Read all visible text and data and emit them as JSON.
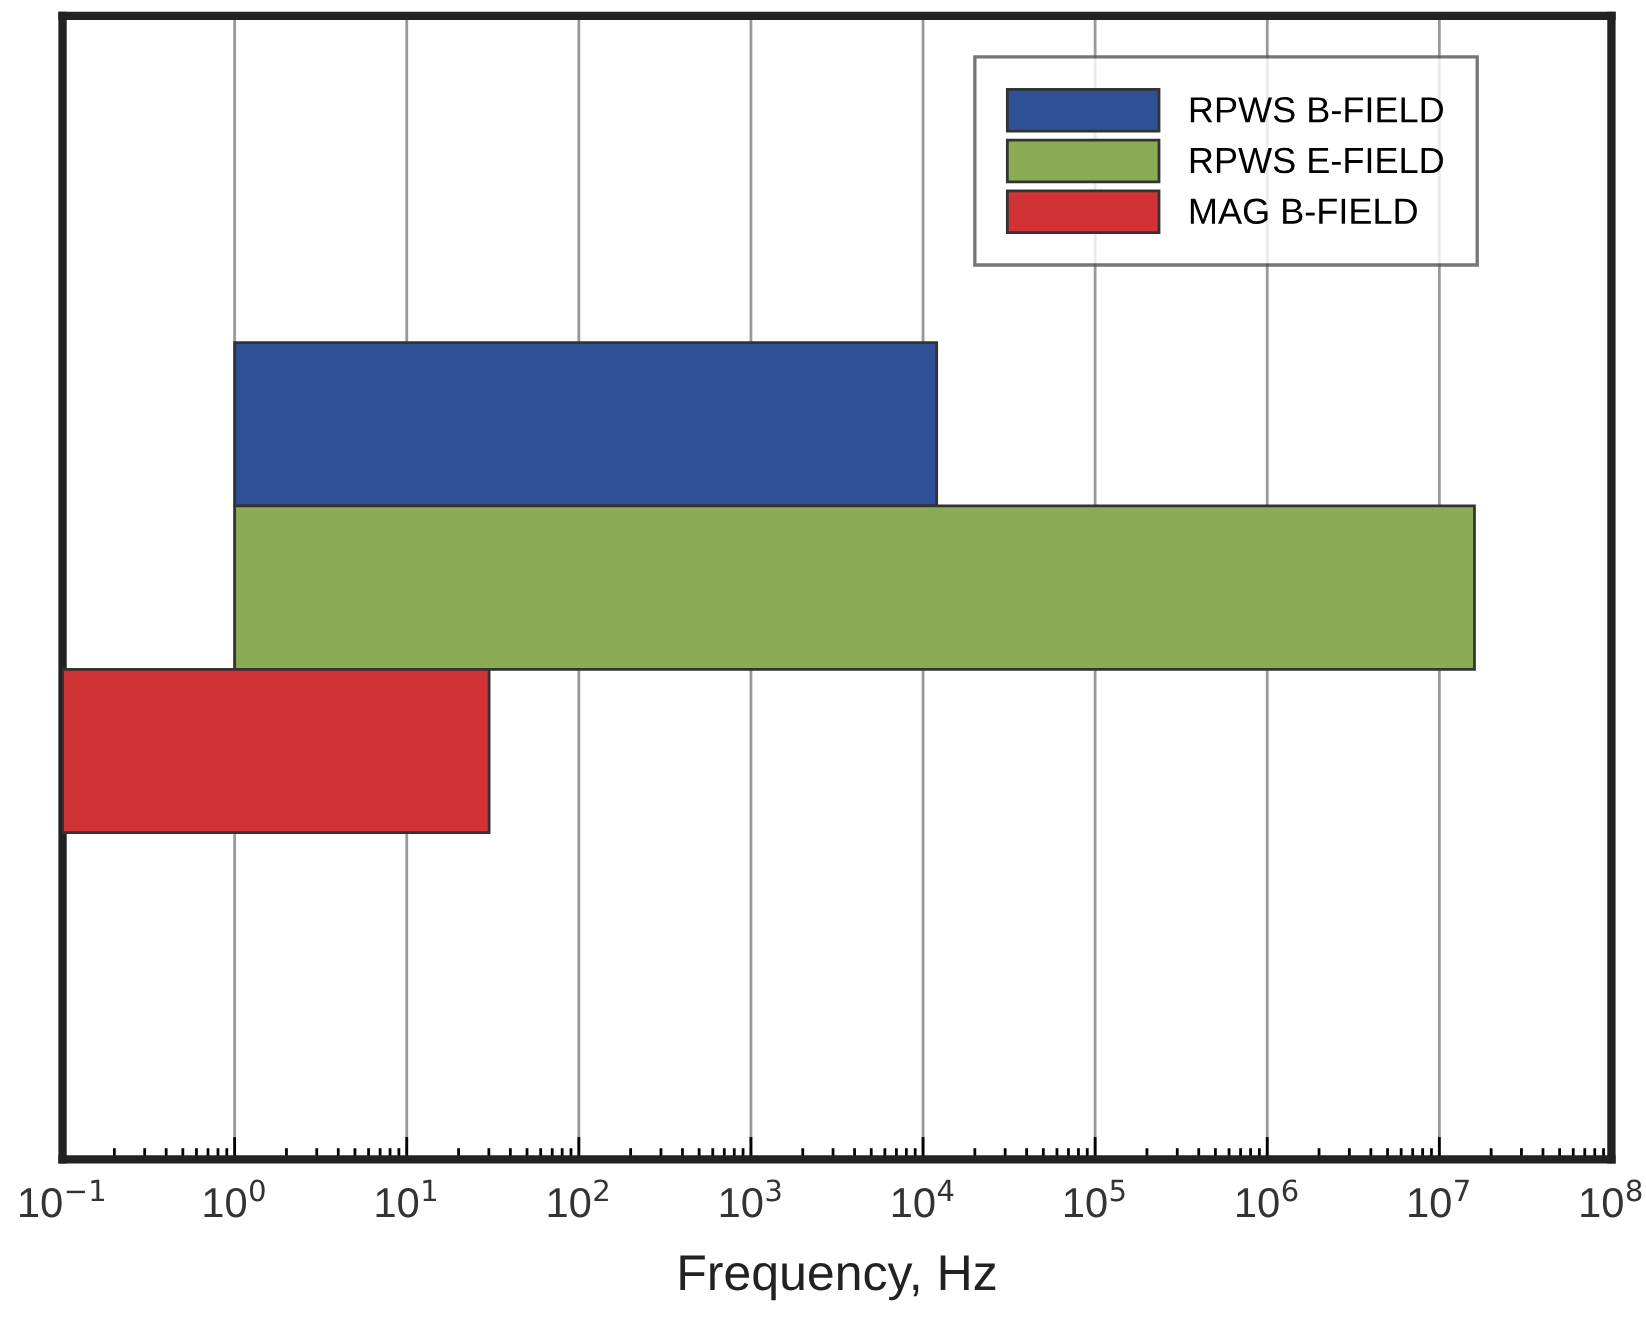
{
  "chart_data": {
    "type": "bar",
    "orientation": "horizontal",
    "xlabel": "Frequency, Hz",
    "categories": [
      null,
      null,
      null,
      null,
      null,
      null,
      null
    ],
    "series": [
      {
        "name": "RPWS B-FIELD",
        "color": "#2e5096",
        "values": [
          null,
          null,
          12000,
          null,
          null,
          null,
          null
        ],
        "base": [
          null,
          null,
          1,
          null,
          null,
          null,
          null
        ]
      },
      {
        "name": "RPWS E-FIELD",
        "color": "#8bac55",
        "values": [
          null,
          null,
          null,
          16000000,
          null,
          null,
          null
        ],
        "base": [
          null,
          null,
          null,
          1,
          null,
          null,
          null
        ]
      },
      {
        "name": "MAG B-FIELD",
        "color": "#d03236",
        "values": [
          null,
          null,
          null,
          null,
          30,
          null,
          null
        ],
        "base": [
          null,
          null,
          null,
          null,
          0.1,
          null,
          null
        ]
      }
    ],
    "log": "x",
    "xlim": [
      0.1,
      100000000
    ],
    "xticks": [
      {
        "value": 0.1,
        "label": "10$^{−1}$"
      },
      {
        "value": 1,
        "label": "10$^{0}$"
      },
      {
        "value": 10,
        "label": "10$^{1}$"
      },
      {
        "value": 100,
        "label": "10$^{2}$"
      },
      {
        "value": 1000,
        "label": "10$^{3}$"
      },
      {
        "value": 10000,
        "label": "10$^{4}$"
      },
      {
        "value": 100000,
        "label": "10$^{5}$"
      },
      {
        "value": 1000000,
        "label": "10$^{6}$"
      },
      {
        "value": 10000000,
        "label": "10$^{7}$"
      },
      {
        "value": 100000000,
        "label": "10$^{8}$"
      }
    ],
    "grid": "x",
    "legend": "top right",
    "tick_labels": "x"
  }
}
